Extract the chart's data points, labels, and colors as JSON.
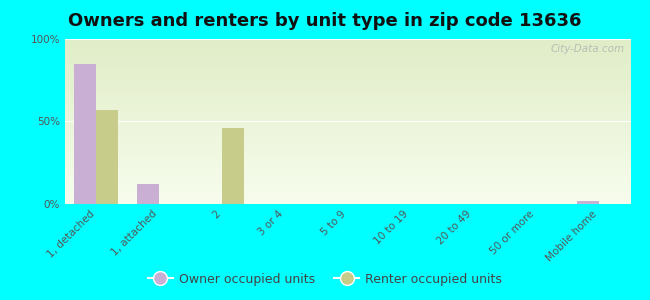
{
  "title": "Owners and renters by unit type in zip code 13636",
  "categories": [
    "1, detached",
    "1, attached",
    "2",
    "3 or 4",
    "5 to 9",
    "10 to 19",
    "20 to 49",
    "50 or more",
    "Mobile home"
  ],
  "owner_values": [
    85,
    12,
    0,
    0,
    0,
    0,
    0,
    0,
    2
  ],
  "renter_values": [
    57,
    0,
    46,
    0,
    0,
    0,
    0,
    0,
    0
  ],
  "owner_color": "#c9afd4",
  "renter_color": "#c8cc8a",
  "background_color": "#00ffff",
  "ylim": [
    0,
    100
  ],
  "yticks": [
    0,
    50,
    100
  ],
  "ytick_labels": [
    "0%",
    "50%",
    "100%"
  ],
  "legend_owner": "Owner occupied units",
  "legend_renter": "Renter occupied units",
  "watermark": "City-Data.com",
  "title_fontsize": 13,
  "tick_fontsize": 7.5,
  "legend_fontsize": 9
}
